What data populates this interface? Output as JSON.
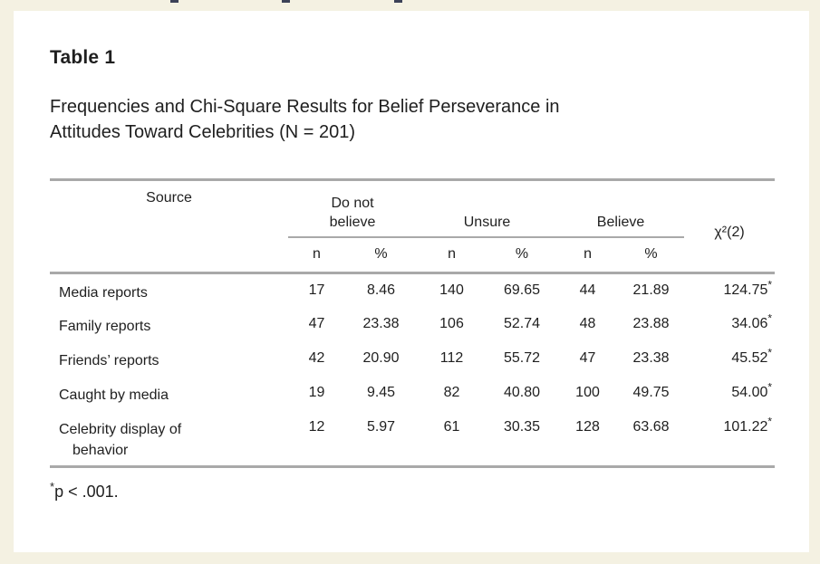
{
  "colors": {
    "background": "#f4f1e2",
    "panel": "#ffffff",
    "rule": "#a9a9a9",
    "text": "#1f1f1f"
  },
  "panel": {
    "table_number": "Table 1",
    "caption": "Frequencies and Chi-Square Results for Belief Perseverance in\nAttitudes Toward Celebrities (N = 201)"
  },
  "table": {
    "source_header": "Source",
    "groups": [
      {
        "label": "Do not\nbelieve"
      },
      {
        "label": "Unsure"
      },
      {
        "label": "Believe"
      }
    ],
    "chi_header": "χ²(2)",
    "sub_headers": [
      "n",
      "%",
      "n",
      "%",
      "n",
      "%"
    ],
    "rows": [
      {
        "source": "Media reports",
        "cells": [
          "17",
          "8.46",
          "140",
          "69.65",
          "44",
          "21.89"
        ],
        "chi": "124.75",
        "chi_marker": "*"
      },
      {
        "source": "Family reports",
        "cells": [
          "47",
          "23.38",
          "106",
          "52.74",
          "48",
          "23.88"
        ],
        "chi": "34.06",
        "chi_marker": "*"
      },
      {
        "source": "Friends’ reports",
        "cells": [
          "42",
          "20.90",
          "112",
          "55.72",
          "47",
          "23.38"
        ],
        "chi": "45.52",
        "chi_marker": "*"
      },
      {
        "source": "Caught by media",
        "cells": [
          "19",
          "9.45",
          "82",
          "40.80",
          "100",
          "49.75"
        ],
        "chi": "54.00",
        "chi_marker": "*"
      },
      {
        "source": "Celebrity display of behavior",
        "cells": [
          "12",
          "5.97",
          "61",
          "30.35",
          "128",
          "63.68"
        ],
        "chi": "101.22",
        "chi_marker": "*"
      }
    ]
  },
  "footnote": {
    "marker": "*",
    "text": "p < .001."
  }
}
